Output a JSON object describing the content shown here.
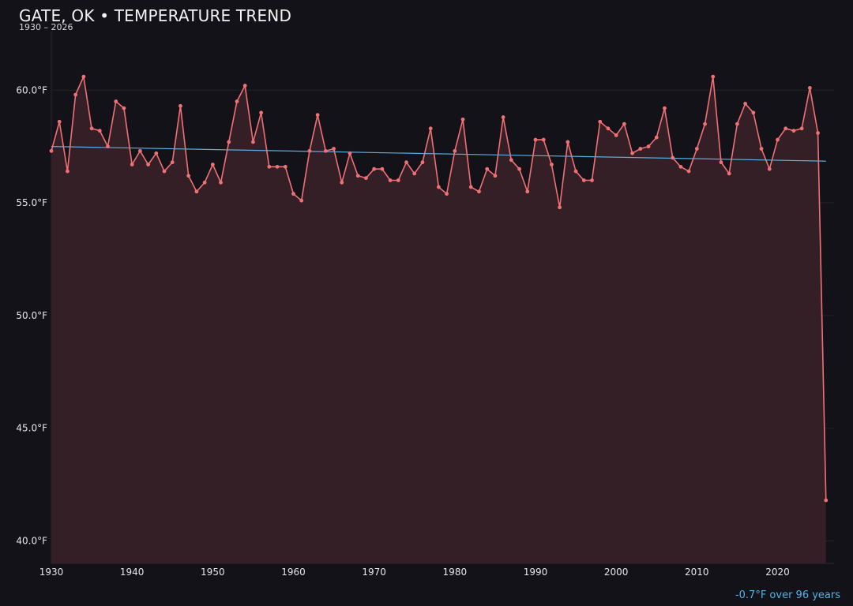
{
  "header": {
    "title": "GATE, OK • TEMPERATURE TREND",
    "subtitle": "1930 – 2026"
  },
  "footer": {
    "trend_note": "-0.7°F over 96 years"
  },
  "colors": {
    "background": "#131218",
    "series_line": "#f07174",
    "series_fill": "#341f26",
    "trend_line": "#5aaee0",
    "tick_text": "#e6e6e6",
    "grid": "#23212a"
  },
  "chart_data": {
    "type": "line",
    "title": "GATE, OK • TEMPERATURE TREND",
    "subtitle": "1930 – 2026",
    "xlabel": "",
    "ylabel": "",
    "xlim": [
      1930,
      2027
    ],
    "ylim": [
      39,
      62.6
    ],
    "x_ticks": [
      1930,
      1940,
      1950,
      1960,
      1970,
      1980,
      1990,
      2000,
      2010,
      2020
    ],
    "x_tick_labels": [
      "1930",
      "1940",
      "1950",
      "1960",
      "1970",
      "1980",
      "1990",
      "2000",
      "2010",
      "2020"
    ],
    "y_ticks": [
      40,
      45,
      50,
      55,
      60
    ],
    "y_tick_labels": [
      "40.0°F",
      "45.0°F",
      "50.0°F",
      "55.0°F",
      "60.0°F"
    ],
    "grid": true,
    "area_fill": true,
    "x": [
      1930,
      1931,
      1932,
      1933,
      1934,
      1935,
      1936,
      1937,
      1938,
      1939,
      1940,
      1941,
      1942,
      1943,
      1944,
      1945,
      1946,
      1947,
      1948,
      1949,
      1950,
      1951,
      1952,
      1953,
      1954,
      1955,
      1956,
      1957,
      1958,
      1959,
      1960,
      1961,
      1962,
      1963,
      1964,
      1965,
      1966,
      1967,
      1968,
      1969,
      1970,
      1971,
      1972,
      1973,
      1974,
      1975,
      1976,
      1977,
      1978,
      1979,
      1980,
      1981,
      1982,
      1983,
      1984,
      1985,
      1986,
      1987,
      1988,
      1989,
      1990,
      1991,
      1992,
      1993,
      1994,
      1995,
      1996,
      1997,
      1998,
      1999,
      2000,
      2001,
      2002,
      2003,
      2004,
      2005,
      2006,
      2007,
      2008,
      2009,
      2010,
      2011,
      2012,
      2013,
      2014,
      2015,
      2016,
      2017,
      2018,
      2019,
      2020,
      2021,
      2022,
      2023,
      2024,
      2025,
      2026
    ],
    "series": [
      {
        "values": [
          57.3,
          58.6,
          56.4,
          59.8,
          60.6,
          58.3,
          58.2,
          57.5,
          59.5,
          59.2,
          56.7,
          57.3,
          56.7,
          57.2,
          56.4,
          56.8,
          59.3,
          56.2,
          55.5,
          55.9,
          56.7,
          55.9,
          57.7,
          59.5,
          60.2,
          57.7,
          59.0,
          56.6,
          56.6,
          56.6,
          55.4,
          55.1,
          57.3,
          58.9,
          57.3,
          57.4,
          55.9,
          57.2,
          56.2,
          56.1,
          56.5,
          56.5,
          56.0,
          56.0,
          56.8,
          56.3,
          56.8,
          58.3,
          55.7,
          55.4,
          57.3,
          58.7,
          55.7,
          55.5,
          56.5,
          56.2,
          58.8,
          56.9,
          56.5,
          55.5,
          57.8,
          57.8,
          56.7,
          54.8,
          57.7,
          56.4,
          56.0,
          56.0,
          58.6,
          58.3,
          58.0,
          58.5,
          57.2,
          57.4,
          57.5,
          57.9,
          59.2,
          57.0,
          56.6,
          56.4,
          57.4,
          58.5,
          60.6,
          56.8,
          56.3,
          58.5,
          59.4,
          59.0,
          57.4,
          56.5,
          57.8,
          58.3,
          58.2,
          58.3,
          60.1,
          58.1,
          41.8
        ]
      }
    ],
    "trend": {
      "x": [
        1930,
        2026
      ],
      "y": [
        57.5,
        56.85
      ]
    }
  }
}
